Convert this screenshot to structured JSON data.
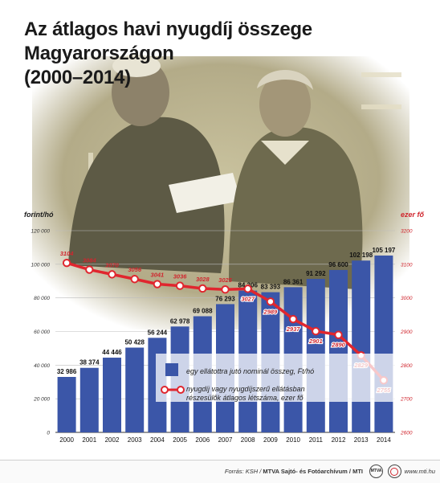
{
  "title_line1": "Az átlagos havi nyugdíj összege Magyarországon",
  "title_line2": "(2000–2014)",
  "colors": {
    "bar": "#3b56a8",
    "line": "#e0262e",
    "left_axis_label": "#1a1a1a",
    "right_axis_label": "#d0262e"
  },
  "chart_data": {
    "type": "bar",
    "categories": [
      "2000",
      "2001",
      "2002",
      "2003",
      "2004",
      "2005",
      "2006",
      "2007",
      "2008",
      "2009",
      "2010",
      "2011",
      "2012",
      "2013",
      "2014"
    ],
    "ylabel": "forint/hó",
    "ylim": [
      0,
      120000
    ],
    "yticks": [
      "0",
      "20 000",
      "40 000",
      "60 000",
      "80 000",
      "100 000",
      "120 000"
    ],
    "y2label": "ezer fő",
    "y2lim": [
      2600,
      3200
    ],
    "y2ticks": [
      "2600",
      "2700",
      "2800",
      "2900",
      "3000",
      "3100",
      "3200"
    ],
    "series": [
      {
        "name": "egy ellátottra jutó nominál összeg, Ft/hó",
        "type": "bar",
        "values": [
          32986,
          38374,
          44446,
          50428,
          56244,
          62978,
          69088,
          76293,
          84306,
          83393,
          86361,
          91292,
          96600,
          102198,
          105197
        ],
        "labels": [
          "32 986",
          "38 374",
          "44 446",
          "50 428",
          "56 244",
          "62 978",
          "69 088",
          "76 293",
          "84 306",
          "83 393",
          "86 361",
          "91 292",
          "96 600",
          "102 198",
          "105 197"
        ]
      },
      {
        "name": "nyugdíj vagy nyugdíjszerű ellátásban részesülők átlagos létszáma, ezer fő",
        "type": "line",
        "values": [
          3104,
          3084,
          3070,
          3056,
          3041,
          3036,
          3028,
          3025,
          3027,
          2989,
          2937,
          2901,
          2890,
          2829,
          2755
        ],
        "labels": [
          "3104",
          "3084",
          "3070",
          "3056",
          "3041",
          "3036",
          "3028",
          "3025",
          "3027",
          "2989",
          "2937",
          "2901",
          "2890",
          "2829",
          "2755"
        ]
      }
    ],
    "legend": {
      "bar_label": "egy ellátottra jutó nominál összeg, Ft/hó",
      "line_label_1": "nyugdíj vagy nyugdíjszerű ellátásban",
      "line_label_2": "részesülők átlagos létszáma, ezer fő"
    }
  },
  "footer": {
    "source_prefix": "Forrás: KSH / ",
    "source_bold": "MTVA Sajtó- és Fotóarchívum / MTI",
    "logo1_text": "MTVA",
    "site": "www.mti.hu"
  }
}
